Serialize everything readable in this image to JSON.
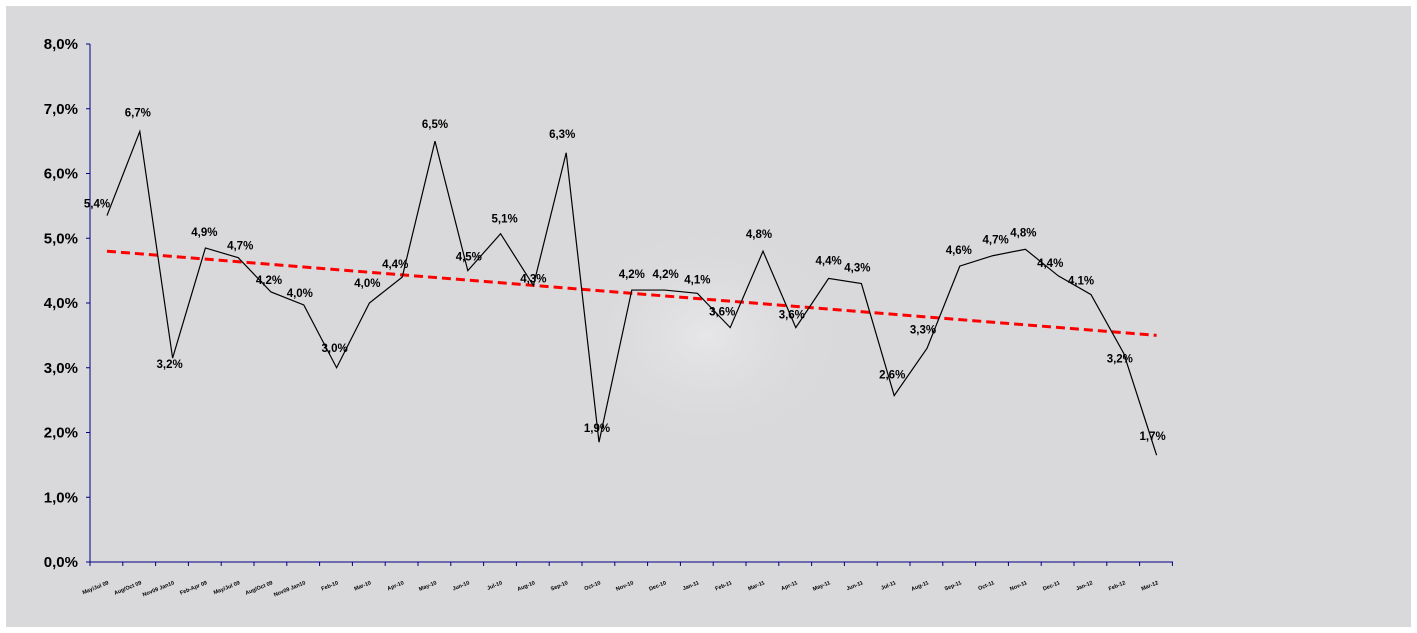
{
  "chart_data": {
    "type": "line",
    "title": "",
    "xlabel": "",
    "ylabel": "",
    "ylim": [
      0,
      8
    ],
    "y_ticks": [
      "0,0%",
      "1,0%",
      "2,0%",
      "3,0%",
      "4,0%",
      "5,0%",
      "6,0%",
      "7,0%",
      "8,0%"
    ],
    "categories": [
      "May/Jul 09",
      "Aug/Oct 09",
      "Nov09 Jan10",
      "Feb-Apr 09",
      "May/Jul 09",
      "Aug/Oct 09",
      "Nov09 Jan10",
      "Feb-10",
      "Mar-10",
      "Apr-10",
      "May-10",
      "Jun-10",
      "Jul-10",
      "Aug-10",
      "Sep-10",
      "Oct-10",
      "Nov-10",
      "Dec-10",
      "Jan-11",
      "Feb-11",
      "Mar-11",
      "Apr-11",
      "May-11",
      "Jun-11",
      "Jul-11",
      "Aug-11",
      "Sep-11",
      "Oct-11",
      "Nov-11",
      "Dec-11",
      "Jan-12",
      "Feb-12",
      "Mar-12"
    ],
    "series": [
      {
        "values": [
          5.35,
          6.65,
          3.15,
          4.85,
          4.7,
          4.17,
          3.97,
          3.0,
          4.0,
          4.4,
          6.5,
          4.5,
          5.07,
          4.27,
          6.32,
          1.85,
          4.2,
          4.2,
          4.15,
          3.62,
          4.8,
          3.62,
          4.38,
          4.3,
          2.57,
          3.3,
          4.57,
          4.73,
          4.83,
          4.42,
          4.13,
          3.22,
          1.65
        ],
        "labels": [
          "5,4%",
          "6,7%",
          "3,2%",
          "4,9%",
          "4,7%",
          "4,2%",
          "4,0%",
          "3,0%",
          "4,0%",
          "4,4%",
          "6,5%",
          "4,5%",
          "5,1%",
          "4,3%",
          "6,3%",
          "1,9%",
          "4,2%",
          "4,2%",
          "4,1%",
          "3,6%",
          "4,8%",
          "3,6%",
          "4,4%",
          "4,3%",
          "2,6%",
          "3,3%",
          "4,6%",
          "4,7%",
          "4,8%",
          "4,4%",
          "4,1%",
          "3,2%",
          "1,7%"
        ],
        "color": "#000000"
      },
      {
        "type": "trendline",
        "style": "dashed",
        "start": 4.8,
        "end": 3.5,
        "color": "#ff0000"
      }
    ],
    "grid": false,
    "legend": "none",
    "background": "#d9d9db",
    "axis_color": "#000080"
  }
}
